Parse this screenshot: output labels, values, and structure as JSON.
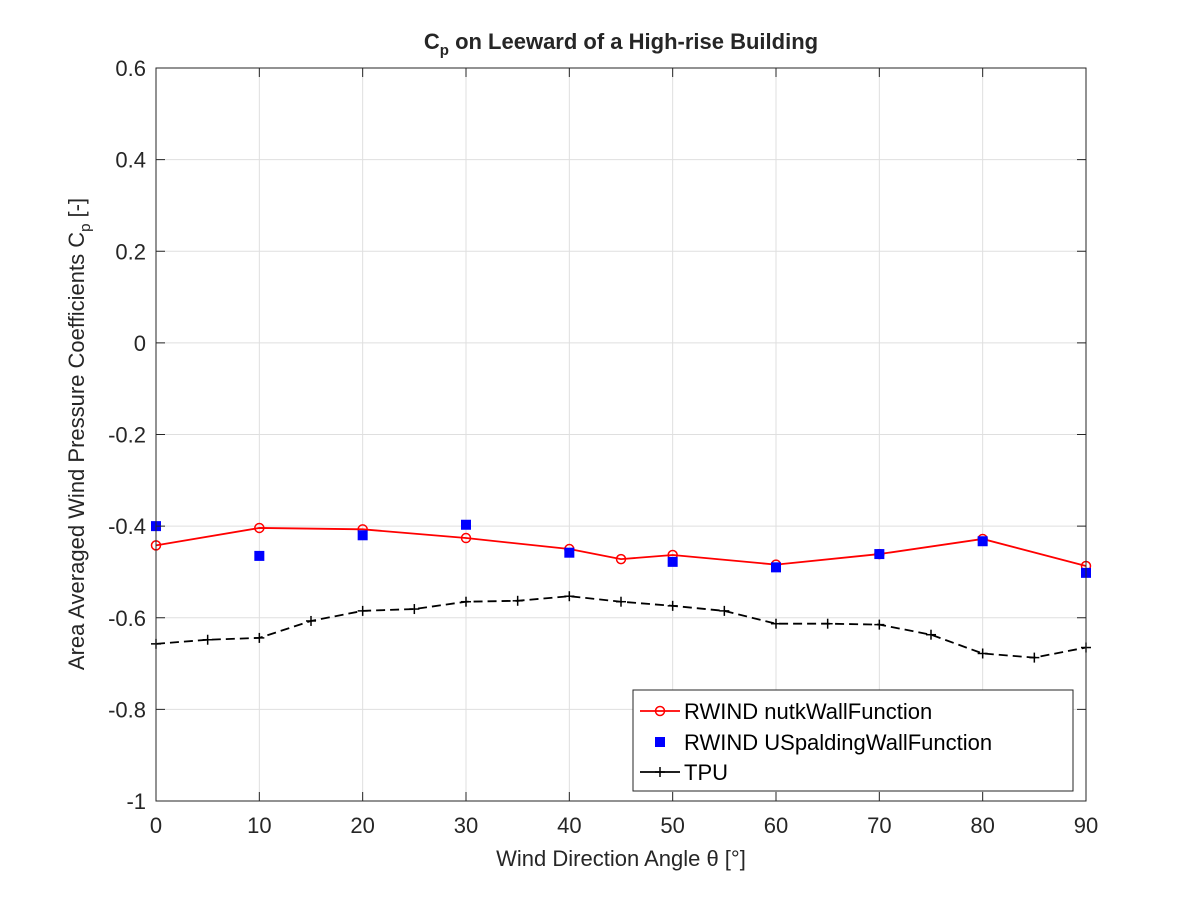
{
  "chart_data": {
    "type": "line",
    "title": "C",
    "title_subscript": "p",
    "title_rest": " on Leeward of a High-rise Building",
    "xlabel": "Wind Direction Angle θ [°]",
    "ylabel": "Area Averaged Wind Pressure Coefficients C",
    "ylabel_subscript": "p",
    "ylabel_rest": " [-]",
    "xlim": [
      0,
      90
    ],
    "ylim": [
      -1,
      0.6
    ],
    "xticks": [
      0,
      10,
      20,
      30,
      40,
      50,
      60,
      70,
      80,
      90
    ],
    "xtick_labels": [
      "0",
      "10",
      "20",
      "30",
      "40",
      "50",
      "60",
      "70",
      "80",
      "90"
    ],
    "yticks": [
      -1,
      -0.8,
      -0.6,
      -0.4,
      -0.2,
      0,
      0.2,
      0.4,
      0.6
    ],
    "ytick_labels": [
      "-1",
      "-0.8",
      "-0.6",
      "-0.4",
      "-0.2",
      "0",
      "0.2",
      "0.4",
      "0.6"
    ],
    "grid": true,
    "legend_position": "bottom-right",
    "series": [
      {
        "name": "RWIND nutkWallFunction",
        "color": "#ff0000",
        "line": "solid",
        "marker": "circle",
        "x": [
          0,
          10,
          20,
          30,
          40,
          45,
          50,
          60,
          70,
          80,
          90
        ],
        "y": [
          -0.442,
          -0.404,
          -0.407,
          -0.426,
          -0.45,
          -0.472,
          -0.463,
          -0.484,
          -0.461,
          -0.428,
          -0.487
        ]
      },
      {
        "name": "RWIND USpaldingWallFunction",
        "color": "#0000ff",
        "line": "none",
        "marker": "square",
        "x": [
          0,
          10,
          20,
          30,
          40,
          50,
          60,
          70,
          80,
          90
        ],
        "y": [
          -0.4,
          -0.465,
          -0.42,
          -0.397,
          -0.458,
          -0.478,
          -0.49,
          -0.461,
          -0.433,
          -0.502
        ]
      },
      {
        "name": "TPU",
        "color": "#000000",
        "line": "dashed",
        "marker": "plus",
        "x": [
          0,
          5,
          10,
          15,
          20,
          25,
          30,
          35,
          40,
          45,
          50,
          55,
          60,
          65,
          70,
          75,
          80,
          85,
          90
        ],
        "y": [
          -0.657,
          -0.648,
          -0.644,
          -0.607,
          -0.585,
          -0.581,
          -0.565,
          -0.563,
          -0.553,
          -0.565,
          -0.574,
          -0.585,
          -0.613,
          -0.613,
          -0.615,
          -0.637,
          -0.678,
          -0.687,
          -0.665
        ]
      }
    ]
  }
}
